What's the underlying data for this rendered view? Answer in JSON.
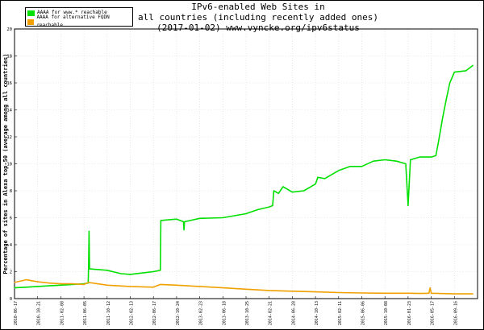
{
  "title_lines": [
    "IPv6-enabled Web Sites in",
    "all countries (including recently added ones)",
    "(2017-01-02) www.vyncke.org/ipv6status"
  ],
  "chart_data": {
    "type": "line",
    "title": "IPv6-enabled Web Sites in all countries (including recently added ones) (2017-01-02) www.vyncke.org/ipv6status",
    "ylabel": "Percentage of sites in Alexa top-50 (average among all countries)",
    "xlabel": "",
    "ylim": [
      0,
      20
    ],
    "yticks": [
      0,
      2,
      4,
      6,
      8,
      10,
      12,
      14,
      16,
      18,
      20
    ],
    "xticks": [
      "2010-06-17",
      "2010-10-21",
      "2011-02-08",
      "2011-06-05",
      "2011-10-12",
      "2012-02-13",
      "2012-06-17",
      "2012-10-24",
      "2013-02-23",
      "2013-06-18",
      "2013-10-25",
      "2014-02-21",
      "2014-06-28",
      "2014-10-13",
      "2015-02-11",
      "2015-06-06",
      "2015-10-08",
      "2016-01-23",
      "2016-05-17",
      "2016-09-16"
    ],
    "grid": true,
    "legend_position": "top-left",
    "series": [
      {
        "name": "AAAA for www.* reachable",
        "color": "#00e000",
        "values": [
          {
            "x": 0.0,
            "y": 0.8
          },
          {
            "x": 0.5,
            "y": 0.85
          },
          {
            "x": 1.0,
            "y": 0.9
          },
          {
            "x": 1.5,
            "y": 0.95
          },
          {
            "x": 2.0,
            "y": 1.0
          },
          {
            "x": 2.5,
            "y": 1.05
          },
          {
            "x": 3.0,
            "y": 1.1
          },
          {
            "x": 3.18,
            "y": 1.15
          },
          {
            "x": 3.2,
            "y": 2.3
          },
          {
            "x": 3.22,
            "y": 5.0
          },
          {
            "x": 3.24,
            "y": 2.2
          },
          {
            "x": 4.0,
            "y": 2.1
          },
          {
            "x": 4.6,
            "y": 1.85
          },
          {
            "x": 5.0,
            "y": 1.8
          },
          {
            "x": 5.5,
            "y": 1.9
          },
          {
            "x": 6.0,
            "y": 2.0
          },
          {
            "x": 6.3,
            "y": 2.1
          },
          {
            "x": 6.32,
            "y": 5.8
          },
          {
            "x": 7.0,
            "y": 5.9
          },
          {
            "x": 7.3,
            "y": 5.7
          },
          {
            "x": 7.32,
            "y": 5.1
          },
          {
            "x": 7.34,
            "y": 5.7
          },
          {
            "x": 8.0,
            "y": 5.95
          },
          {
            "x": 9.0,
            "y": 6.0
          },
          {
            "x": 10.0,
            "y": 6.3
          },
          {
            "x": 10.5,
            "y": 6.6
          },
          {
            "x": 11.0,
            "y": 6.8
          },
          {
            "x": 11.15,
            "y": 6.9
          },
          {
            "x": 11.2,
            "y": 8.0
          },
          {
            "x": 11.4,
            "y": 7.8
          },
          {
            "x": 11.6,
            "y": 8.3
          },
          {
            "x": 12.0,
            "y": 7.9
          },
          {
            "x": 12.5,
            "y": 8.0
          },
          {
            "x": 13.0,
            "y": 8.5
          },
          {
            "x": 13.1,
            "y": 9.0
          },
          {
            "x": 13.4,
            "y": 8.9
          },
          {
            "x": 13.6,
            "y": 9.1
          },
          {
            "x": 14.0,
            "y": 9.5
          },
          {
            "x": 14.5,
            "y": 9.8
          },
          {
            "x": 15.0,
            "y": 9.8
          },
          {
            "x": 15.5,
            "y": 10.2
          },
          {
            "x": 16.0,
            "y": 10.3
          },
          {
            "x": 16.5,
            "y": 10.2
          },
          {
            "x": 16.9,
            "y": 10.0
          },
          {
            "x": 17.0,
            "y": 6.9
          },
          {
            "x": 17.1,
            "y": 10.3
          },
          {
            "x": 17.5,
            "y": 10.5
          },
          {
            "x": 18.0,
            "y": 10.5
          },
          {
            "x": 18.2,
            "y": 10.6
          },
          {
            "x": 18.3,
            "y": 11.5
          },
          {
            "x": 18.4,
            "y": 12.5
          },
          {
            "x": 18.5,
            "y": 13.5
          },
          {
            "x": 18.65,
            "y": 14.8
          },
          {
            "x": 18.8,
            "y": 16.0
          },
          {
            "x": 19.0,
            "y": 16.8
          },
          {
            "x": 19.5,
            "y": 16.9
          },
          {
            "x": 19.8,
            "y": 17.3
          }
        ]
      },
      {
        "name": "AAAA for alternative FQDN reachable",
        "color": "#f0a000",
        "values": [
          {
            "x": 0.0,
            "y": 1.2
          },
          {
            "x": 0.5,
            "y": 1.4
          },
          {
            "x": 1.0,
            "y": 1.25
          },
          {
            "x": 1.5,
            "y": 1.15
          },
          {
            "x": 2.0,
            "y": 1.1
          },
          {
            "x": 2.5,
            "y": 1.1
          },
          {
            "x": 3.0,
            "y": 1.05
          },
          {
            "x": 3.2,
            "y": 1.2
          },
          {
            "x": 4.0,
            "y": 1.0
          },
          {
            "x": 5.0,
            "y": 0.9
          },
          {
            "x": 6.0,
            "y": 0.85
          },
          {
            "x": 6.3,
            "y": 1.05
          },
          {
            "x": 7.0,
            "y": 1.0
          },
          {
            "x": 8.0,
            "y": 0.9
          },
          {
            "x": 9.0,
            "y": 0.8
          },
          {
            "x": 10.0,
            "y": 0.7
          },
          {
            "x": 11.0,
            "y": 0.6
          },
          {
            "x": 12.0,
            "y": 0.55
          },
          {
            "x": 13.0,
            "y": 0.5
          },
          {
            "x": 14.0,
            "y": 0.45
          },
          {
            "x": 15.0,
            "y": 0.42
          },
          {
            "x": 16.0,
            "y": 0.4
          },
          {
            "x": 17.0,
            "y": 0.4
          },
          {
            "x": 17.5,
            "y": 0.38
          },
          {
            "x": 17.9,
            "y": 0.4
          },
          {
            "x": 17.95,
            "y": 0.8
          },
          {
            "x": 18.0,
            "y": 0.4
          },
          {
            "x": 19.0,
            "y": 0.35
          },
          {
            "x": 19.8,
            "y": 0.35
          }
        ]
      }
    ]
  }
}
